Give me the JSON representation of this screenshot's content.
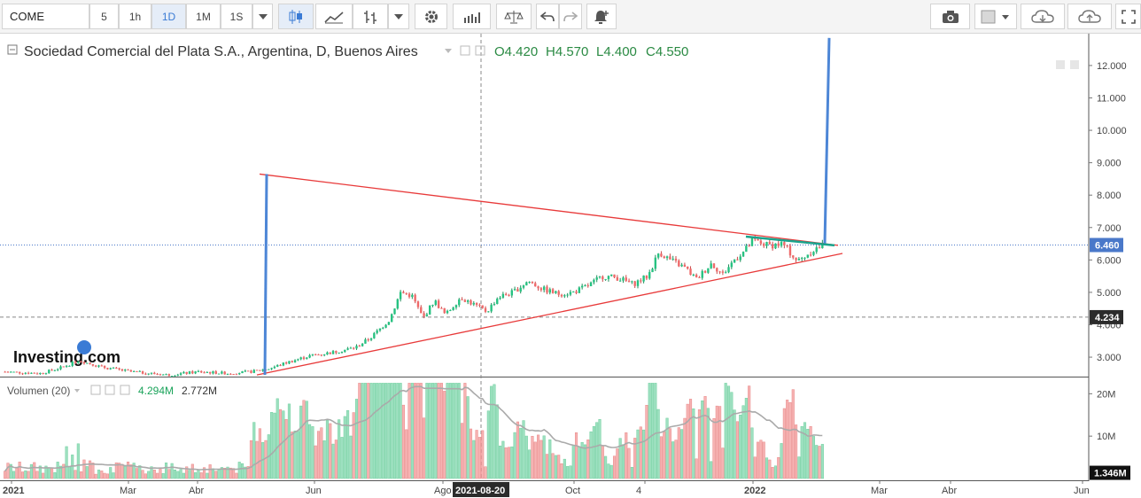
{
  "toolbar": {
    "symbol": "COME",
    "intervals": [
      "5",
      "1h",
      "1D",
      "1M",
      "1S"
    ],
    "active_interval": "1D",
    "icons": [
      "candles-icon",
      "line-chart-icon",
      "bars-icon",
      "chevron-down-icon",
      "gear-icon",
      "indicators-icon",
      "compare-icon",
      "undo-icon",
      "redo-icon",
      "alert-icon",
      "camera-icon",
      "color-square-icon",
      "cloud-download-icon",
      "cloud-upload-icon",
      "fullscreen-icon"
    ]
  },
  "legend": {
    "title": "Sociedad Comercial del Plata S.A., Argentina, D, Buenos Aires",
    "open": "O4.420",
    "high": "H4.570",
    "low": "L4.400",
    "close": "C4.550"
  },
  "volume_legend": {
    "title": "Volumen (20)",
    "value1": "4.294M",
    "value2": "2.772M"
  },
  "watermark": "Investing.com",
  "colors": {
    "up": "#26c281",
    "down": "#ef6a6a",
    "vol_up": "#9de0c0",
    "vol_down": "#f6b3b3",
    "trend_red": "#e83a3a",
    "target_blue": "#4d86d6",
    "teal": "#1aa38c",
    "price_tag": "#4a78c9",
    "grid_dark_tag": "#2b2b2b"
  },
  "chart_data": {
    "type": "candlestick",
    "price_axis": {
      "ticks": [
        "12.000",
        "11.000",
        "10.000",
        "9.000",
        "8.000",
        "7.000",
        "6.000",
        "5.000",
        "4.000",
        "3.000"
      ],
      "range": [
        2.4,
        12.9
      ],
      "current_price_label": "6.460",
      "current_price": 6.46,
      "crosshair_price_label": "4.234",
      "crosshair_price": 4.234
    },
    "volume_axis": {
      "ticks": [
        "20M",
        "10M"
      ],
      "range": [
        0,
        23
      ],
      "last_label": "1.346M",
      "last_value": 1.346
    },
    "time_axis": {
      "ticks": [
        "2021",
        "Mar",
        "Abr",
        "Jun",
        "Ago",
        "Oct",
        "4",
        "2022",
        "Mar",
        "Abr",
        "Jun"
      ],
      "crosshair_label": "2021-08-20"
    },
    "series_path": [
      [
        0,
        2.55
      ],
      [
        0.05,
        2.5
      ],
      [
        0.08,
        2.7
      ],
      [
        0.1,
        2.9
      ],
      [
        0.13,
        2.7
      ],
      [
        0.17,
        2.55
      ],
      [
        0.22,
        2.45
      ],
      [
        0.26,
        2.55
      ],
      [
        0.3,
        2.5
      ],
      [
        0.33,
        2.55
      ],
      [
        0.355,
        2.65
      ],
      [
        0.38,
        2.85
      ],
      [
        0.41,
        3.05
      ],
      [
        0.44,
        3.15
      ],
      [
        0.47,
        3.3
      ],
      [
        0.49,
        3.6
      ],
      [
        0.515,
        4.15
      ],
      [
        0.53,
        5.0
      ],
      [
        0.545,
        4.9
      ],
      [
        0.56,
        4.2
      ],
      [
        0.575,
        4.75
      ],
      [
        0.59,
        4.3
      ],
      [
        0.61,
        4.85
      ],
      [
        0.63,
        4.6
      ],
      [
        0.645,
        4.4
      ],
      [
        0.66,
        4.85
      ],
      [
        0.68,
        5.0
      ],
      [
        0.7,
        5.35
      ],
      [
        0.72,
        5.1
      ],
      [
        0.74,
        4.95
      ],
      [
        0.76,
        5.0
      ],
      [
        0.78,
        5.2
      ],
      [
        0.8,
        5.5
      ],
      [
        0.82,
        5.45
      ],
      [
        0.84,
        5.25
      ],
      [
        0.86,
        5.5
      ],
      [
        0.875,
        6.25
      ],
      [
        0.89,
        6.0
      ],
      [
        0.91,
        5.75
      ],
      [
        0.925,
        5.4
      ],
      [
        0.945,
        5.9
      ],
      [
        0.96,
        5.55
      ],
      [
        0.975,
        6.0
      ],
      [
        0.99,
        6.3
      ],
      [
        1.0,
        6.6
      ],
      [
        1.02,
        6.45
      ],
      [
        1.04,
        6.5
      ],
      [
        1.06,
        5.95
      ],
      [
        1.08,
        6.3
      ],
      [
        1.095,
        6.46
      ]
    ],
    "annotations": [
      {
        "type": "trendline",
        "name": "upper-triangle-line",
        "from": {
          "date": "2021-05",
          "price": 8.65
        },
        "to": {
          "date": "2022-02",
          "price": 6.45
        }
      },
      {
        "type": "trendline",
        "name": "lower-triangle-line",
        "from": {
          "date": "2021-05",
          "price": 2.45
        },
        "to": {
          "date": "2022-02",
          "price": 6.2
        }
      },
      {
        "type": "vertical",
        "name": "left-target-line",
        "from": 2.45,
        "to": 8.65
      },
      {
        "type": "vertical",
        "name": "right-target-line",
        "from": 6.5,
        "to": 12.9
      }
    ]
  }
}
